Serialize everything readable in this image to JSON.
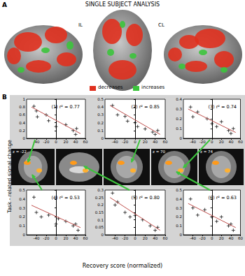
{
  "panel_a": {
    "label": "A",
    "title": "SINGLE SUBJECT ANALYSIS",
    "side_labels": [
      "IL",
      "CL"
    ],
    "key_items": [
      {
        "label": "decreases",
        "color": "#e0301e"
      },
      {
        "label": "increases",
        "color": "#3cc43c"
      }
    ]
  },
  "panel_b": {
    "label": "B",
    "y_label": "Task - related signal change",
    "x_label": "Recovery score (normalized)",
    "slice_labels": [
      "z = -22",
      "z = 70",
      "z = 74"
    ]
  },
  "chart_data": [
    {
      "type": "scatter",
      "annotation": "(1) r² = 0.77",
      "xlim": [
        -60,
        60
      ],
      "xticks": [
        -40,
        -20,
        0,
        20,
        40,
        60
      ],
      "ylim": [
        0,
        1
      ],
      "yticks": [
        0,
        0.2,
        0.4,
        0.6,
        0.8,
        1
      ],
      "grid": false,
      "series": [
        {
          "type": "scatter",
          "marker": "cross",
          "color": "#000000",
          "x": [
            -45,
            -40,
            -38,
            -20,
            -15,
            0,
            20,
            35,
            40,
            42
          ],
          "values": [
            0.82,
            0.7,
            0.55,
            0.6,
            0.45,
            0.3,
            0.35,
            0.2,
            0.1,
            0.25
          ]
        },
        {
          "type": "line",
          "line_style": "solid",
          "color": "#c0504d",
          "x": [
            -50,
            50
          ],
          "values": [
            0.8,
            0.12
          ]
        }
      ]
    },
    {
      "type": "scatter",
      "annotation": "(2) r² = 0.85",
      "xlim": [
        -60,
        60
      ],
      "xticks": [
        -40,
        -20,
        0,
        20,
        40,
        60
      ],
      "ylim": [
        0,
        0.5
      ],
      "yticks": [
        0,
        0.1,
        0.2,
        0.3,
        0.4,
        0.5
      ],
      "grid": false,
      "series": [
        {
          "type": "scatter",
          "marker": "cross",
          "color": "#000000",
          "x": [
            -45,
            -35,
            -20,
            -15,
            0,
            5,
            20,
            35,
            40,
            45
          ],
          "values": [
            0.42,
            0.3,
            0.28,
            0.22,
            0.2,
            0.15,
            0.12,
            0.08,
            0.05,
            0.1
          ]
        },
        {
          "type": "line",
          "line_style": "solid",
          "color": "#c0504d",
          "x": [
            -50,
            50
          ],
          "values": [
            0.42,
            0.05
          ]
        }
      ]
    },
    {
      "type": "scatter",
      "annotation": "(3) r² = 0.74",
      "xlim": [
        -60,
        60
      ],
      "xticks": [
        -40,
        -20,
        0,
        20,
        40,
        60
      ],
      "ylim": [
        0,
        0.4
      ],
      "yticks": [
        0,
        0.1,
        0.2,
        0.3,
        0.4
      ],
      "grid": false,
      "series": [
        {
          "type": "scatter",
          "marker": "cross",
          "color": "#000000",
          "x": [
            -45,
            -40,
            -30,
            -10,
            0,
            10,
            20,
            35,
            40,
            45
          ],
          "values": [
            0.32,
            0.22,
            0.27,
            0.2,
            0.15,
            0.12,
            0.17,
            0.08,
            0.05,
            0.1
          ]
        },
        {
          "type": "line",
          "line_style": "solid",
          "color": "#c0504d",
          "x": [
            -50,
            50
          ],
          "values": [
            0.3,
            0.06
          ]
        }
      ]
    },
    {
      "type": "scatter",
      "annotation": "(4) r² = 0.53",
      "xlim": [
        -60,
        60
      ],
      "xticks": [
        -40,
        -20,
        0,
        20,
        40,
        60
      ],
      "ylim": [
        0,
        0.5
      ],
      "yticks": [
        0,
        0.1,
        0.2,
        0.3,
        0.4,
        0.5
      ],
      "grid": false,
      "series": [
        {
          "type": "scatter",
          "marker": "cross",
          "color": "#000000",
          "x": [
            -45,
            -40,
            -30,
            -15,
            0,
            5,
            20,
            35,
            40,
            45
          ],
          "values": [
            0.42,
            0.25,
            0.2,
            0.22,
            0.12,
            0.18,
            0.15,
            0.1,
            0.12,
            0.05
          ]
        },
        {
          "type": "line",
          "line_style": "solid",
          "color": "#c0504d",
          "x": [
            -50,
            50
          ],
          "values": [
            0.33,
            0.08
          ]
        }
      ]
    },
    {
      "type": "scatter",
      "annotation": "(5) r² = 0.80",
      "xlim": [
        -60,
        60
      ],
      "xticks": [
        -40,
        -20,
        0,
        20,
        40,
        60
      ],
      "ylim": [
        0,
        0.3
      ],
      "yticks": [
        0,
        0.05,
        0.1,
        0.15,
        0.2,
        0.25,
        0.3
      ],
      "grid": false,
      "series": [
        {
          "type": "scatter",
          "marker": "cross",
          "color": "#000000",
          "x": [
            -45,
            -40,
            -35,
            -20,
            -10,
            0,
            15,
            30,
            40,
            45
          ],
          "values": [
            0.28,
            0.2,
            0.22,
            0.15,
            0.12,
            0.13,
            0.1,
            0.06,
            0.03,
            0.05
          ]
        },
        {
          "type": "line",
          "line_style": "solid",
          "color": "#c0504d",
          "x": [
            -50,
            50
          ],
          "values": [
            0.25,
            0.03
          ]
        }
      ]
    },
    {
      "type": "scatter",
      "annotation": "(6) r² = 0.63",
      "xlim": [
        -60,
        60
      ],
      "xticks": [
        -40,
        -20,
        0,
        20,
        40,
        60
      ],
      "ylim": [
        0,
        0.5
      ],
      "yticks": [
        0,
        0.1,
        0.2,
        0.3,
        0.4,
        0.5
      ],
      "grid": false,
      "series": [
        {
          "type": "scatter",
          "marker": "cross",
          "color": "#000000",
          "x": [
            -45,
            -40,
            -30,
            -15,
            0,
            10,
            20,
            35,
            40,
            45
          ],
          "values": [
            0.4,
            0.3,
            0.22,
            0.28,
            0.2,
            0.15,
            0.2,
            0.1,
            0.12,
            0.05
          ]
        },
        {
          "type": "line",
          "line_style": "solid",
          "color": "#c0504d",
          "x": [
            -50,
            50
          ],
          "values": [
            0.35,
            0.08
          ]
        }
      ]
    }
  ]
}
